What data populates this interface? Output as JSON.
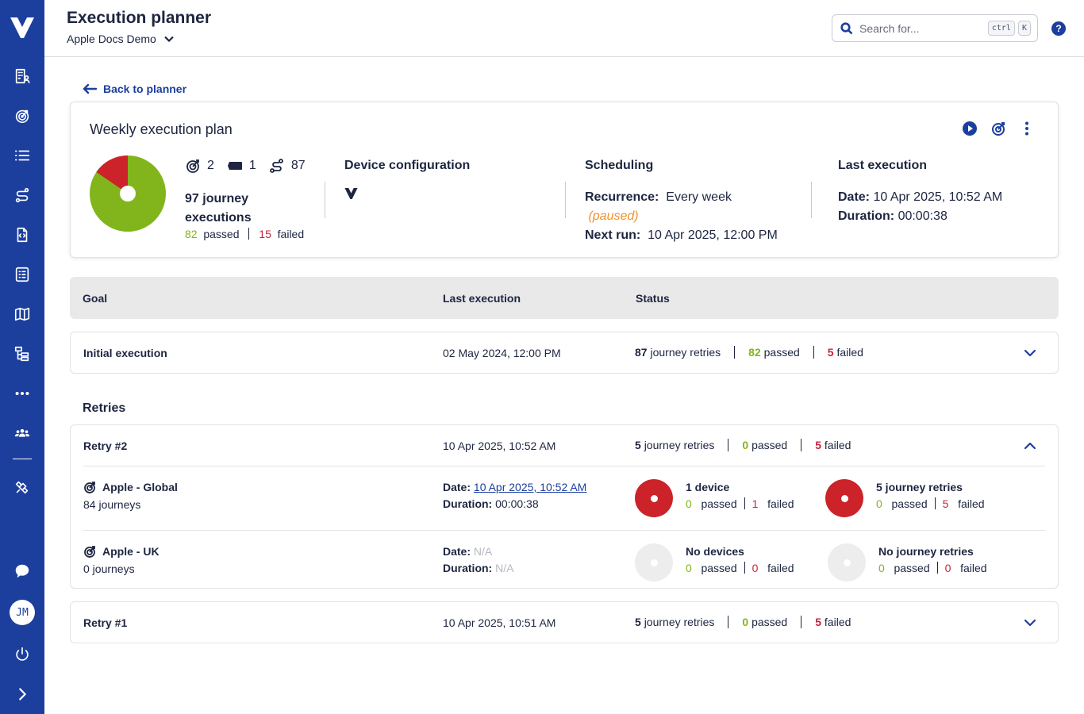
{
  "header": {
    "title": "Execution planner",
    "project": "Apple Docs Demo",
    "search_placeholder": "Search for...",
    "kbd1": "ctrl",
    "kbd2": "K",
    "help": "?"
  },
  "sidebar": {
    "avatar": "JM",
    "items": [
      "building-user-icon",
      "target-icon",
      "list-icon",
      "route-icon",
      "code-file-icon",
      "checklist-icon",
      "map-icon",
      "hierarchy-icon",
      "more-icon",
      "team-icon",
      "satellite-icon",
      "chat-icon",
      "power-icon",
      "expand-icon"
    ]
  },
  "back_label": "Back to planner",
  "plan": {
    "title": "Weekly execution plan",
    "goals_count": "2",
    "devices_count": "1",
    "journeys_count": "87",
    "executions_label": "97 journey executions",
    "passed": "82",
    "passed_label": "passed",
    "failed": "15",
    "failed_label": "failed",
    "device_config_h": "Device configuration",
    "scheduling_h": "Scheduling",
    "recurrence_label": "Recurrence:",
    "recurrence_value": "Every week",
    "paused": "(paused)",
    "next_run_label": "Next run:",
    "next_run_value": "10 Apr 2025, 12:00 PM",
    "last_exec_h": "Last execution",
    "date_label": "Date:",
    "date_value": "10 Apr 2025, 10:52 AM",
    "duration_label": "Duration:",
    "duration_value": "00:00:38",
    "pie": {
      "passed": 82,
      "failed": 15,
      "passed_color": "#82b51c",
      "failed_color": "#cc2229"
    }
  },
  "table": {
    "col_goal": "Goal",
    "col_last": "Last execution",
    "col_status": "Status"
  },
  "initial": {
    "name": "Initial execution",
    "date": "02 May 2024, 12:00 PM",
    "retries_n": "87",
    "retries_label": "journey retries",
    "passed_n": "82",
    "passed_label": "passed",
    "failed_n": "5",
    "failed_label": "failed"
  },
  "retries_heading": "Retries",
  "retry2": {
    "name": "Retry #2",
    "date": "10 Apr 2025, 10:52 AM",
    "retries_n": "5",
    "retries_label": "journey retries",
    "passed_n": "0",
    "passed_label": "passed",
    "failed_n": "5",
    "failed_label": "failed",
    "goals": [
      {
        "name": "Apple - Global",
        "journeys": "84 journeys",
        "date_label": "Date:",
        "date": "10 Apr 2025, 10:52 AM",
        "duration_label": "Duration:",
        "duration": "00:00:38",
        "devices_title": "1 device",
        "dev_passed": "0",
        "dev_failed": "1",
        "retries_title": "5 journey retries",
        "ret_passed": "0",
        "ret_failed": "5"
      },
      {
        "name": "Apple - UK",
        "journeys": "0 journeys",
        "date_label": "Date:",
        "date": "N/A",
        "duration_label": "Duration:",
        "duration": "N/A",
        "devices_title": "No devices",
        "dev_passed": "0",
        "dev_failed": "0",
        "retries_title": "No journey retries",
        "ret_passed": "0",
        "ret_failed": "0"
      }
    ]
  },
  "retry1": {
    "name": "Retry #1",
    "date": "10 Apr 2025, 10:51 AM",
    "retries_n": "5",
    "retries_label": "journey retries",
    "passed_n": "0",
    "passed_label": "passed",
    "failed_n": "5",
    "failed_label": "failed"
  },
  "labels": {
    "passed": "passed",
    "failed": "failed"
  }
}
